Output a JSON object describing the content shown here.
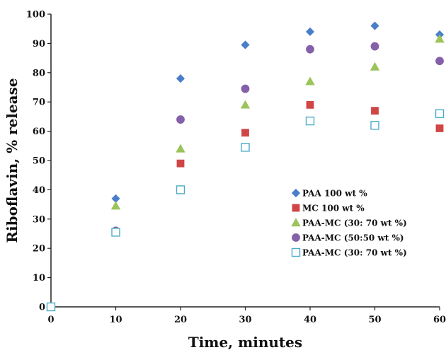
{
  "chart_data": {
    "type": "scatter",
    "title": "",
    "xlabel": "Time, minutes",
    "ylabel": "Riboflavin, % release",
    "xlim": [
      0,
      60
    ],
    "ylim": [
      0,
      100
    ],
    "xticks": [
      0,
      10,
      20,
      30,
      40,
      50,
      60
    ],
    "yticks": [
      0,
      10,
      20,
      30,
      40,
      50,
      60,
      70,
      80,
      90,
      100
    ],
    "x": [
      0,
      10,
      20,
      30,
      40,
      50,
      60
    ],
    "grid": false,
    "legend_position": "lower-right",
    "series": [
      {
        "name": "PAA 100 wt %",
        "marker": "diamond",
        "color": "#4a7ec9",
        "filled": true,
        "values": [
          0,
          37,
          78,
          89.5,
          94,
          96,
          93
        ]
      },
      {
        "name": "MC 100 wt %",
        "marker": "square",
        "color": "#d04545",
        "filled": true,
        "values": [
          0,
          25.5,
          49,
          59.5,
          69,
          67,
          61
        ]
      },
      {
        "name": "PAA-MC (30: 70 wt %)",
        "marker": "triangle",
        "color": "#9bc45a",
        "filled": true,
        "values": [
          0,
          34.5,
          54,
          69,
          77,
          82,
          91.5
        ]
      },
      {
        "name": "PAA-MC (50:50 wt %)",
        "marker": "circle",
        "color": "#8460a8",
        "filled": true,
        "values": [
          0,
          26,
          64,
          74.5,
          88,
          89,
          84
        ]
      },
      {
        "name": "PAA-MC (30: 70 wt %)",
        "marker": "square",
        "color": "#4bacc6",
        "filled": false,
        "values": [
          0,
          25.5,
          40,
          54.5,
          63.5,
          62,
          66
        ]
      }
    ]
  }
}
